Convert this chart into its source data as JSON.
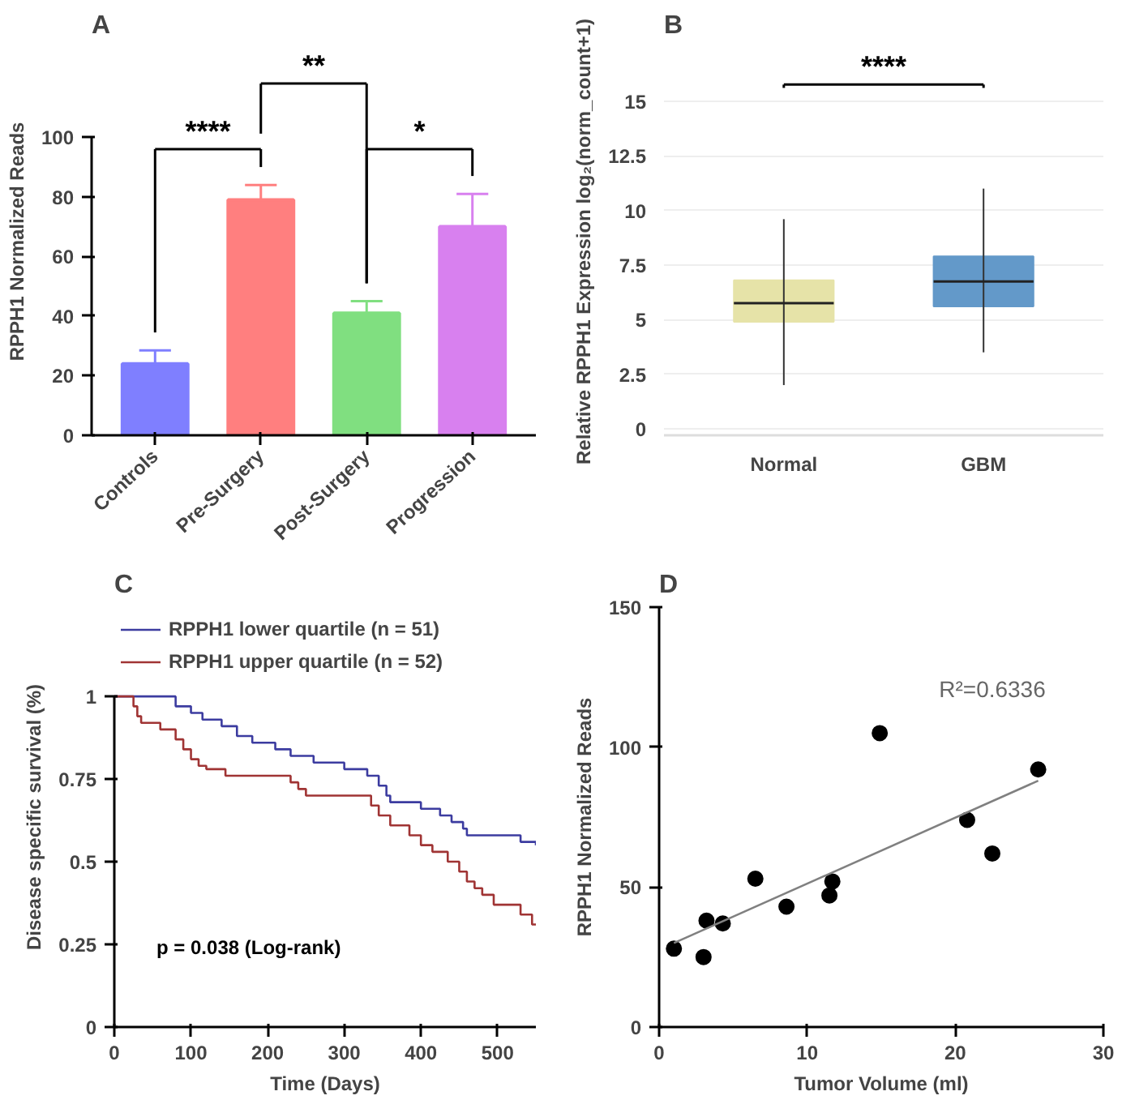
{
  "chart_data": [
    {
      "type": "bar",
      "title": "A",
      "ylabel": "RPPH1 Normalized Reads",
      "categories": [
        "Controls",
        "Pre-Surgery",
        "Post-Surgery",
        "Progression"
      ],
      "values": [
        24,
        79,
        41,
        70
      ],
      "colors": [
        "#7f7fff",
        "#ff7f7f",
        "#80df80",
        "#d880ef"
      ],
      "errors": [
        [
          24,
          28.5
        ],
        [
          79,
          84
        ],
        [
          41,
          45
        ],
        [
          70,
          81
        ]
      ],
      "ylim": [
        0,
        100
      ],
      "yticks": [
        0,
        20,
        40,
        60,
        80,
        100
      ],
      "grid": false,
      "annotations": [
        "****",
        "**",
        "*"
      ]
    },
    {
      "type": "box",
      "title": "B",
      "ylabel": "Relative RPPH1 Expression log₂(norm_count+1)",
      "categories": [
        "Normal",
        "GBM"
      ],
      "colors": [
        "#e6e3a8",
        "#6399c9"
      ],
      "boxes": [
        {
          "low": 2,
          "q1": 4.9,
          "median": 5.75,
          "q3": 6.8,
          "high": 9.6
        },
        {
          "low": 3.5,
          "q1": 5.6,
          "median": 6.75,
          "q3": 7.9,
          "high": 11
        }
      ],
      "ylim": [
        -0.3,
        15
      ],
      "yticks": [
        0,
        2.5,
        5,
        7.5,
        10,
        12.5,
        15
      ],
      "grid": "y",
      "annotations": [
        "****"
      ]
    },
    {
      "type": "step",
      "title": "C",
      "xlabel": "Time (Days)",
      "ylabel": "Disease specific survival (%)",
      "series": [
        {
          "name": "RPPH1 lower quartile (n = 51)",
          "color": "#3c3ca0",
          "x": [
            0,
            80,
            100,
            115,
            140,
            160,
            180,
            210,
            230,
            260,
            300,
            330,
            345,
            355,
            360,
            400,
            425,
            440,
            455,
            460,
            530,
            550
          ],
          "values": [
            1,
            0.97,
            0.95,
            0.93,
            0.91,
            0.88,
            0.86,
            0.84,
            0.82,
            0.8,
            0.78,
            0.76,
            0.73,
            0.7,
            0.68,
            0.66,
            0.64,
            0.62,
            0.6,
            0.58,
            0.56,
            0.55
          ]
        },
        {
          "name": "RPPH1 upper quartile (n = 52)",
          "color": "#a03434",
          "x": [
            0,
            25,
            30,
            35,
            60,
            80,
            90,
            100,
            110,
            120,
            145,
            230,
            240,
            250,
            335,
            345,
            360,
            385,
            400,
            415,
            435,
            450,
            460,
            470,
            480,
            495,
            530,
            545,
            550
          ],
          "values": [
            1,
            0.97,
            0.94,
            0.92,
            0.9,
            0.87,
            0.84,
            0.81,
            0.79,
            0.78,
            0.76,
            0.74,
            0.72,
            0.7,
            0.67,
            0.64,
            0.61,
            0.58,
            0.55,
            0.53,
            0.5,
            0.47,
            0.44,
            0.42,
            0.4,
            0.37,
            0.34,
            0.31,
            0.31
          ]
        }
      ],
      "xlim": [
        0,
        550
      ],
      "xticks": [
        0,
        100,
        200,
        300,
        400,
        500
      ],
      "ylim": [
        0,
        1
      ],
      "yticks": [
        0,
        0.25,
        0.5,
        0.75,
        1
      ],
      "legend": "top",
      "grid": false,
      "annotations": [
        "p = 0.038 (Log-rank)"
      ]
    },
    {
      "type": "scatter",
      "title": "D",
      "xlabel": "Tumor Volume (ml)",
      "ylabel": "RPPH1 Normalized Reads",
      "series": [
        {
          "type": "scatter",
          "marker": "circle",
          "color": "#000000",
          "x": [
            1,
            3,
            3.2,
            4.3,
            6.5,
            8.6,
            11.5,
            11.7,
            14.9,
            20.8,
            22.5,
            25.6
          ],
          "values": [
            28,
            25,
            38,
            37,
            53,
            43,
            47,
            52,
            105,
            74,
            62,
            92
          ]
        },
        {
          "type": "line",
          "color": "#808080",
          "x": [
            1,
            25.6
          ],
          "values": [
            30,
            88
          ]
        }
      ],
      "xlim": [
        0,
        30
      ],
      "xticks": [
        0,
        10,
        20,
        30
      ],
      "ylim": [
        0,
        150
      ],
      "yticks": [
        0,
        50,
        100,
        150
      ],
      "grid": false,
      "annotations": [
        "R²=0.6336"
      ]
    }
  ]
}
